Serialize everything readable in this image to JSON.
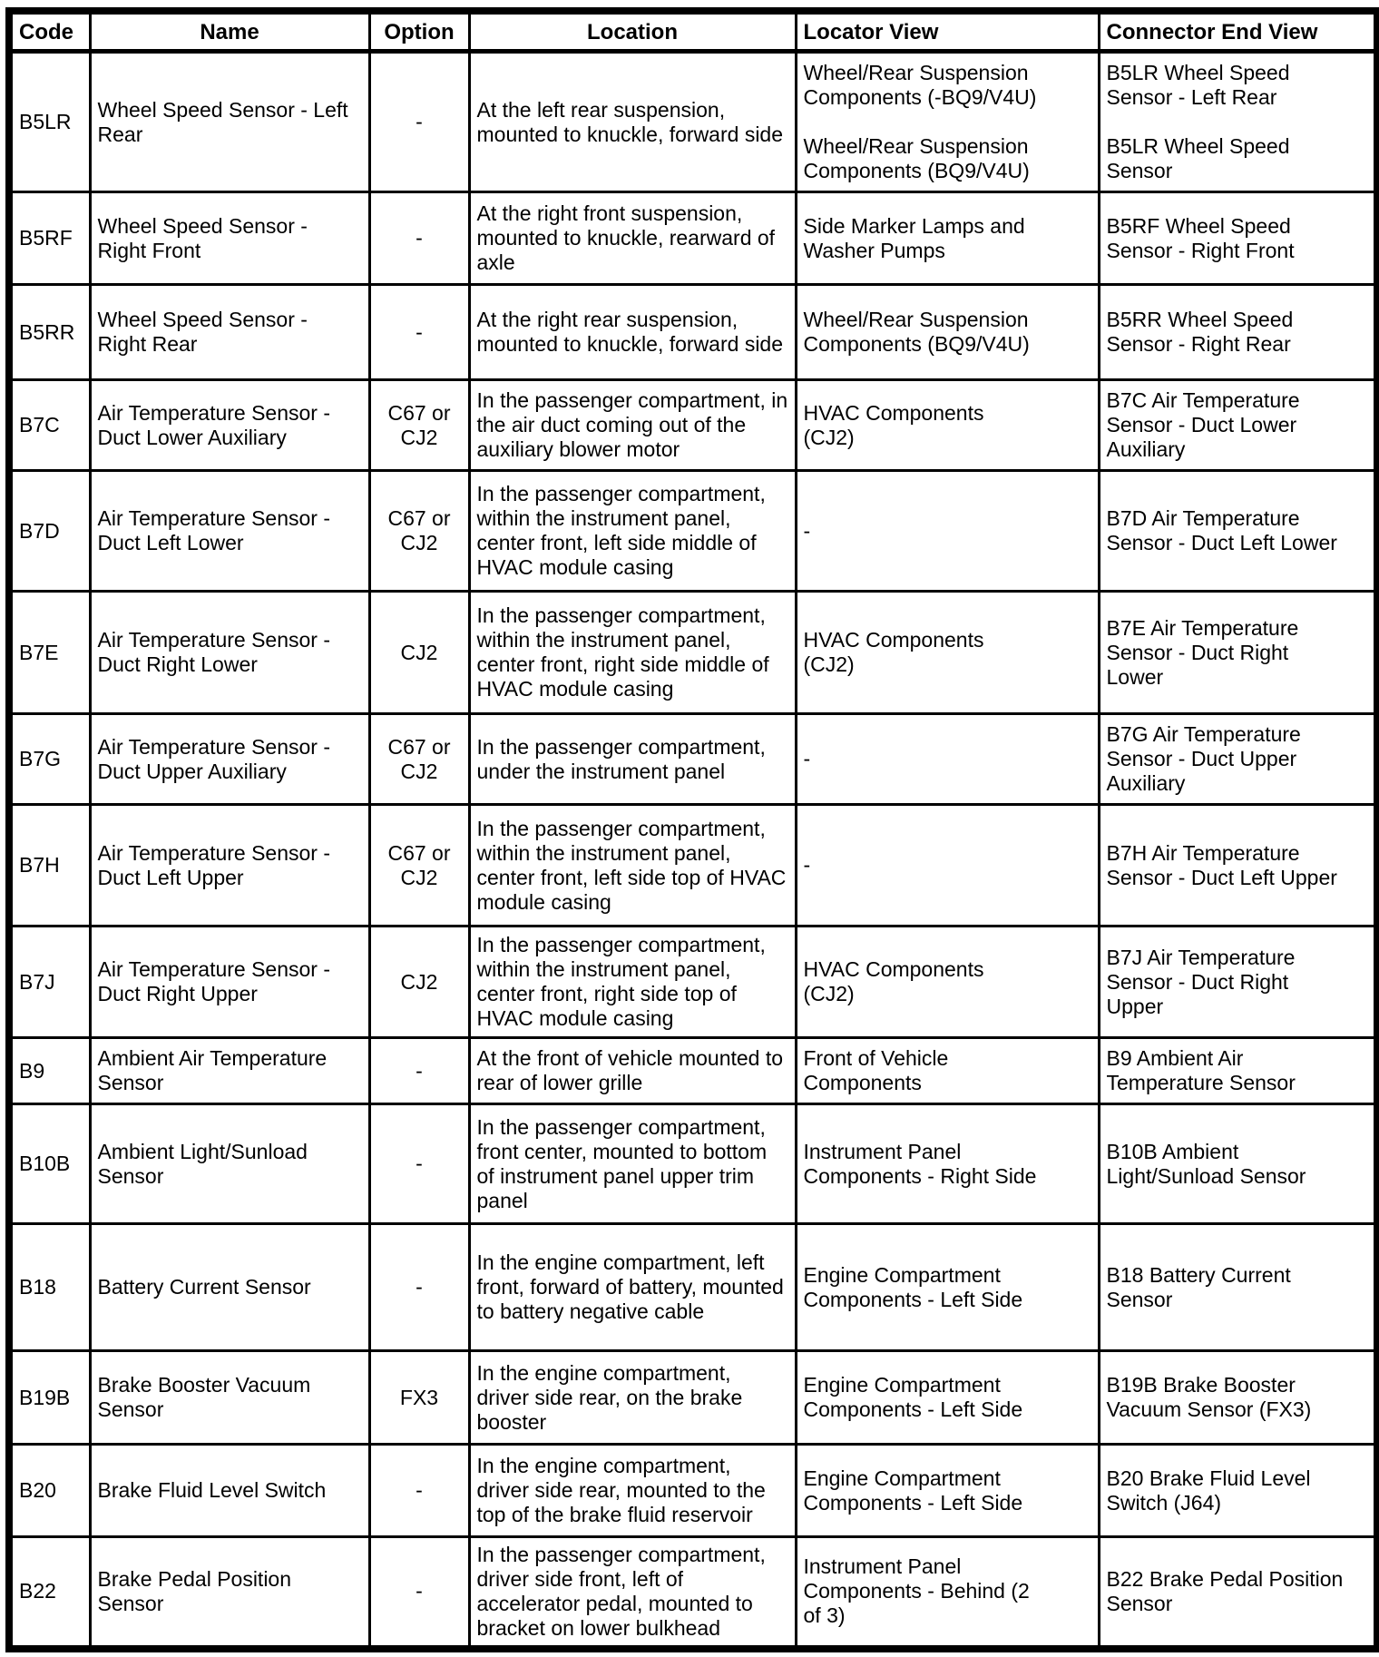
{
  "page": {
    "background_color": "#ffffff",
    "text_color": "#000000"
  },
  "table": {
    "columns": [
      "Code",
      "Name",
      "Option",
      "Location",
      "Locator View",
      "Connector End View"
    ],
    "rows": [
      {
        "code": "B5LR",
        "name": "Wheel Speed Sensor - Left Rear",
        "option": "-",
        "location": "At the left rear suspension, mounted to knuckle, forward side",
        "locator_view": [
          "Wheel/Rear Suspension\nComponents (-BQ9/V4U)",
          "Wheel/Rear Suspension\nComponents (BQ9/V4U)"
        ],
        "connector_end_view": [
          "B5LR Wheel Speed\nSensor - Left Rear",
          "B5LR Wheel Speed\nSensor"
        ]
      },
      {
        "code": "B5RF",
        "name": "Wheel Speed Sensor - Right Front",
        "option": "-",
        "location": "At the right front suspension, mounted to knuckle, rearward of axle",
        "locator_view": [
          "Side Marker Lamps and\nWasher Pumps"
        ],
        "connector_end_view": [
          "B5RF Wheel Speed\nSensor - Right Front"
        ]
      },
      {
        "code": "B5RR",
        "name": "Wheel Speed Sensor - Right Rear",
        "option": "-",
        "location": "At the right rear suspension, mounted to knuckle, forward side",
        "locator_view": [
          "Wheel/Rear Suspension\nComponents (BQ9/V4U)"
        ],
        "connector_end_view": [
          "B5RR Wheel Speed\nSensor - Right Rear"
        ]
      },
      {
        "code": "B7C",
        "name": "Air Temperature Sensor - Duct Lower Auxiliary",
        "option": "C67 or CJ2",
        "location": "In the passenger compartment, in the air duct coming out of the auxiliary blower motor",
        "locator_view": [
          "HVAC Components\n(CJ2)"
        ],
        "connector_end_view": [
          "B7C Air Temperature\nSensor - Duct Lower\nAuxiliary"
        ]
      },
      {
        "code": "B7D",
        "name": "Air Temperature Sensor - Duct Left Lower",
        "option": "C67 or CJ2",
        "location": "In the passenger compartment, within the instrument panel, center front, left side middle of HVAC module casing",
        "locator_view": [
          "-"
        ],
        "connector_end_view": [
          "B7D Air Temperature\nSensor - Duct Left Lower"
        ]
      },
      {
        "code": "B7E",
        "name": "Air Temperature Sensor - Duct Right Lower",
        "option": "CJ2",
        "location": "In the passenger compartment, within the instrument panel, center front, right side middle of HVAC module casing",
        "locator_view": [
          "HVAC Components\n(CJ2)"
        ],
        "connector_end_view": [
          "B7E Air Temperature\nSensor - Duct Right\nLower"
        ]
      },
      {
        "code": "B7G",
        "name": "Air Temperature Sensor - Duct Upper Auxiliary",
        "option": "C67 or CJ2",
        "location": "In the passenger compartment, under the instrument panel",
        "locator_view": [
          "-"
        ],
        "connector_end_view": [
          "B7G Air Temperature\nSensor - Duct Upper\nAuxiliary"
        ]
      },
      {
        "code": "B7H",
        "name": "Air Temperature Sensor - Duct Left Upper",
        "option": "C67 or CJ2",
        "location": "In the passenger compartment, within the instrument panel, center front, left side top of HVAC module casing",
        "locator_view": [
          "-"
        ],
        "connector_end_view": [
          "B7H Air Temperature\nSensor - Duct Left Upper"
        ]
      },
      {
        "code": "B7J",
        "name": "Air Temperature Sensor - Duct Right Upper",
        "option": "CJ2",
        "location": "In the passenger compartment, within the instrument panel, center front, right side top of HVAC module casing",
        "locator_view": [
          "HVAC Components\n(CJ2)"
        ],
        "connector_end_view": [
          "B7J Air Temperature\nSensor - Duct Right\nUpper"
        ]
      },
      {
        "code": "B9",
        "name": "Ambient Air Temperature Sensor",
        "option": "-",
        "location": "At the front of vehicle mounted to rear of lower grille",
        "locator_view": [
          "Front of Vehicle\nComponents"
        ],
        "connector_end_view": [
          "B9 Ambient Air\nTemperature Sensor"
        ]
      },
      {
        "code": "B10B",
        "name": "Ambient Light/Sunload Sensor",
        "option": "-",
        "location": "In the passenger compartment, front center, mounted to bottom of instrument panel upper trim panel",
        "locator_view": [
          "Instrument Panel\nComponents - Right Side"
        ],
        "connector_end_view": [
          "B10B Ambient\nLight/Sunload Sensor"
        ]
      },
      {
        "code": "B18",
        "name": "Battery Current Sensor",
        "option": "-",
        "location": "In the engine compartment, left front, forward of battery, mounted to battery negative cable",
        "locator_view": [
          "Engine Compartment\nComponents - Left Side"
        ],
        "connector_end_view": [
          "B18 Battery Current\nSensor"
        ]
      },
      {
        "code": "B19B",
        "name": "Brake Booster Vacuum Sensor",
        "option": "FX3",
        "location": "In the engine compartment, driver side rear, on the brake booster",
        "locator_view": [
          "Engine Compartment\nComponents - Left Side"
        ],
        "connector_end_view": [
          "B19B Brake Booster\nVacuum Sensor (FX3)"
        ]
      },
      {
        "code": "B20",
        "name": "Brake Fluid Level Switch",
        "option": "-",
        "location": "In the engine compartment, driver side rear, mounted to the top of the brake fluid reservoir",
        "locator_view": [
          "Engine Compartment\nComponents - Left Side"
        ],
        "connector_end_view": [
          "B20 Brake Fluid Level\nSwitch (J64)"
        ]
      },
      {
        "code": "B22",
        "name": "Brake Pedal Position Sensor",
        "option": "-",
        "location": "In the passenger compartment, driver side front, left of accelerator pedal, mounted to bracket on lower bulkhead",
        "locator_view": [
          "Instrument Panel\nComponents - Behind (2\nof 3)"
        ],
        "connector_end_view": [
          "B22 Brake Pedal Position\nSensor"
        ]
      }
    ]
  }
}
